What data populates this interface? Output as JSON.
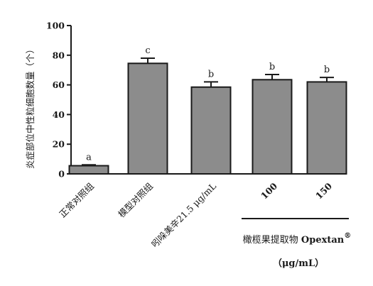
{
  "chart_data": {
    "type": "bar",
    "ylabel": "炎症部位中性粒细胞数量（个）",
    "ylim": [
      0,
      100
    ],
    "yticks": [
      0,
      20,
      40,
      60,
      80,
      100
    ],
    "categories": [
      "正常对照组",
      "模型对照组",
      "吲哚美辛21.5 μg/mL",
      "100",
      "150"
    ],
    "values": [
      5.5,
      74.5,
      58.5,
      63.5,
      62
    ],
    "errors": [
      0.6,
      3.5,
      3.5,
      3.5,
      3
    ],
    "significance": [
      "a",
      "c",
      "b",
      "b",
      "b"
    ],
    "group_label": {
      "name": "橄榄果提取物 Opextan",
      "superscript": "®",
      "unit": "（μg/mL）",
      "categories": [
        3,
        4
      ]
    },
    "colors": {
      "bar": "#8c8c8c",
      "axis": "#1a1a1a"
    }
  }
}
